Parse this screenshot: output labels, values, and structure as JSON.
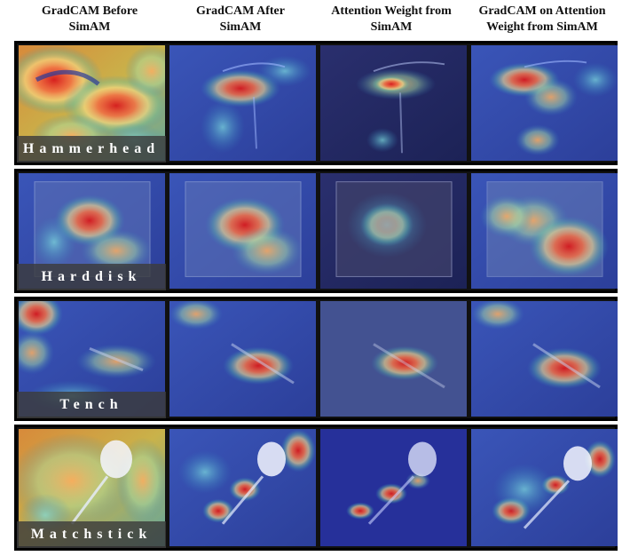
{
  "columns": [
    {
      "line1": "GradCAM Before",
      "line2": "SimAM"
    },
    {
      "line1": "GradCAM After",
      "line2": "SimAM"
    },
    {
      "line1": "Attention Weight from",
      "line2": "SimAM"
    },
    {
      "line1": "GradCAM on Attention",
      "line2": "Weight from SimAM"
    }
  ],
  "rows": [
    {
      "label": "Hammerhead"
    },
    {
      "label": "Harddisk"
    },
    {
      "label": "Tench"
    },
    {
      "label": "Matchstick"
    }
  ]
}
